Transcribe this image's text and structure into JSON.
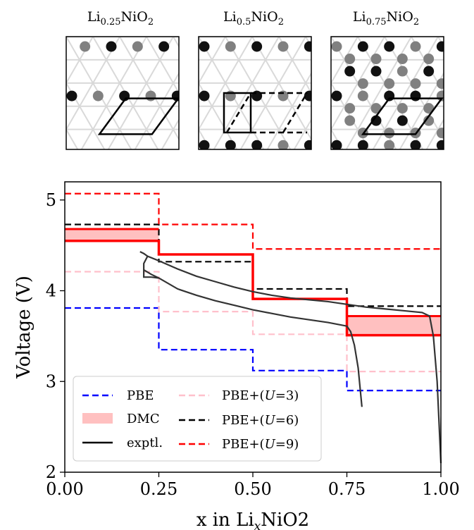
{
  "structure_panels": [
    {
      "title": "Li0.25NiO2",
      "title_base": "Li",
      "title_sub": "0.25",
      "title_rest": "NiO",
      "title_sub2": "2"
    },
    {
      "title": "Li0.5NiO2",
      "title_base": "Li",
      "title_sub": "0.5",
      "title_rest": "NiO",
      "title_sub2": "2"
    },
    {
      "title": "Li0.75NiO2",
      "title_base": "Li",
      "title_sub": "0.75",
      "title_rest": "NiO",
      "title_sub2": "2"
    }
  ],
  "chart_data": {
    "type": "line",
    "xlabel": "x in LixNiO2",
    "xlabel_parts": {
      "pre": "x in Li",
      "sub": "x",
      "post": "NiO2"
    },
    "ylabel": "Voltage (V)",
    "xlim": [
      0,
      1
    ],
    "ylim": [
      2,
      5.2
    ],
    "xticks": [
      0,
      0.25,
      0.5,
      0.75,
      1
    ],
    "xtick_labels": [
      "0.00",
      "0.25",
      "0.50",
      "0.75",
      "1.00"
    ],
    "yticks": [
      2,
      3,
      4,
      5
    ],
    "ytick_labels": [
      "2",
      "3",
      "4",
      "5"
    ],
    "grid": false,
    "legend_placement": "lower-left",
    "series": [
      {
        "name": "PBE",
        "style": "dashed",
        "color": "#0000ff",
        "segments": [
          [
            0,
            0.25,
            3.81
          ],
          [
            0.25,
            0.5,
            3.35
          ],
          [
            0.5,
            0.75,
            3.12
          ],
          [
            0.75,
            1,
            2.9
          ]
        ]
      },
      {
        "name": "PBE+(U=3)",
        "name_pre": "PBE+(",
        "name_var": "U",
        "name_post": "=3)",
        "style": "dashed",
        "color": "#ffc0cb",
        "segments": [
          [
            0,
            0.25,
            4.21
          ],
          [
            0.25,
            0.5,
            3.77
          ],
          [
            0.5,
            0.75,
            3.52
          ],
          [
            0.75,
            1,
            3.11
          ]
        ]
      },
      {
        "name": "PBE+(U=6)",
        "name_pre": "PBE+(",
        "name_var": "U",
        "name_post": "=6)",
        "style": "dashed",
        "color": "#000000",
        "segments": [
          [
            0,
            0.25,
            4.73
          ],
          [
            0.25,
            0.5,
            4.32
          ],
          [
            0.5,
            0.75,
            4.02
          ],
          [
            0.75,
            1,
            3.83
          ]
        ]
      },
      {
        "name": "PBE+(U=9)",
        "name_pre": "PBE+(",
        "name_var": "U",
        "name_post": "=9)",
        "style": "dashed",
        "color": "#ff0000",
        "segments": [
          [
            0,
            0.25,
            5.07
          ],
          [
            0.25,
            0.5,
            4.73
          ],
          [
            0.5,
            0.75,
            4.46
          ],
          [
            0.75,
            1,
            4.46
          ]
        ]
      },
      {
        "name": "DMC",
        "style": "band",
        "color": "#ff0000",
        "fill": "#ffc0c0",
        "segments": [
          [
            0,
            0.25,
            4.55,
            4.68
          ],
          [
            0.25,
            0.5,
            4.4,
            4.4
          ],
          [
            0.5,
            0.75,
            3.91,
            3.91
          ],
          [
            0.75,
            1,
            3.51,
            3.72
          ]
        ]
      },
      {
        "name": "exptl.",
        "style": "solid",
        "color": "#333333",
        "charge": [
          [
            0.2,
            4.43
          ],
          [
            0.21,
            4.41
          ],
          [
            0.22,
            4.38
          ],
          [
            0.25,
            4.33
          ],
          [
            0.3,
            4.24
          ],
          [
            0.35,
            4.16
          ],
          [
            0.4,
            4.1
          ],
          [
            0.45,
            4.04
          ],
          [
            0.5,
            3.99
          ],
          [
            0.55,
            3.95
          ],
          [
            0.6,
            3.92
          ],
          [
            0.65,
            3.9
          ],
          [
            0.7,
            3.88
          ],
          [
            0.75,
            3.85
          ],
          [
            0.8,
            3.82
          ],
          [
            0.85,
            3.8
          ],
          [
            0.9,
            3.78
          ],
          [
            0.95,
            3.76
          ],
          [
            0.97,
            3.72
          ],
          [
            0.98,
            3.5
          ],
          [
            0.99,
            3.0
          ],
          [
            1.0,
            2.1
          ]
        ],
        "discharge": [
          [
            0.21,
            4.23
          ],
          [
            0.23,
            4.18
          ],
          [
            0.25,
            4.14
          ],
          [
            0.3,
            4.02
          ],
          [
            0.35,
            3.95
          ],
          [
            0.4,
            3.89
          ],
          [
            0.45,
            3.84
          ],
          [
            0.5,
            3.79
          ],
          [
            0.55,
            3.75
          ],
          [
            0.6,
            3.71
          ],
          [
            0.65,
            3.68
          ],
          [
            0.7,
            3.65
          ],
          [
            0.75,
            3.61
          ],
          [
            0.76,
            3.55
          ],
          [
            0.77,
            3.4
          ],
          [
            0.78,
            3.15
          ],
          [
            0.79,
            2.72
          ]
        ],
        "hook": [
          [
            0.22,
            4.38
          ],
          [
            0.21,
            4.3
          ],
          [
            0.21,
            4.2
          ],
          [
            0.21,
            4.15
          ],
          [
            0.23,
            4.15
          ],
          [
            0.25,
            4.14
          ]
        ]
      }
    ]
  }
}
